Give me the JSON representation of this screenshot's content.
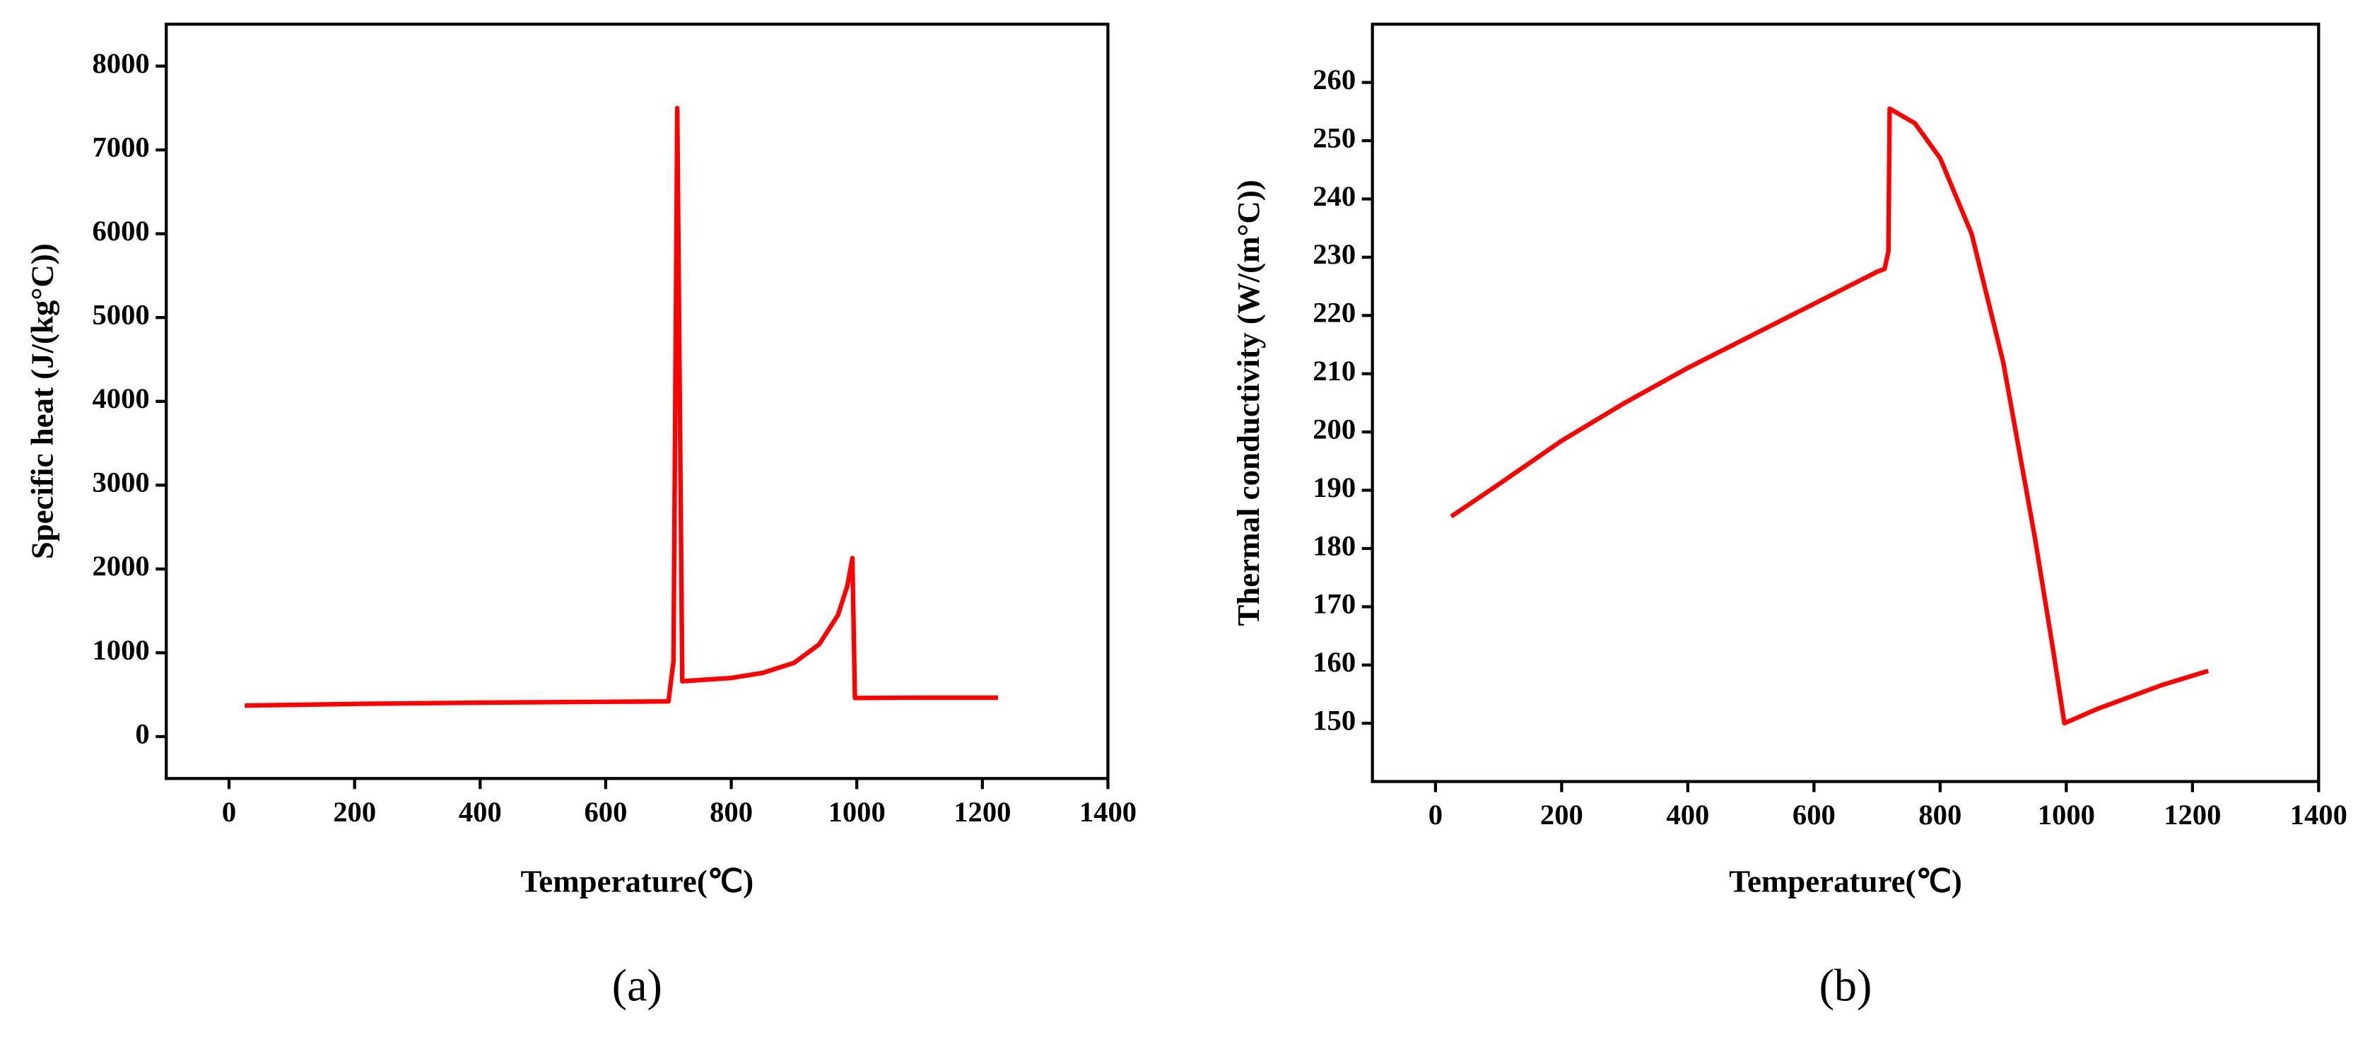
{
  "chart_data": [
    {
      "type": "line",
      "panel_label": "(a)",
      "xlabel": "Temperature(℃)",
      "ylabel": "Specific heat (J/(kg°C))",
      "x": [
        25,
        200,
        400,
        600,
        700,
        708,
        714,
        722,
        800,
        850,
        900,
        940,
        970,
        985,
        993,
        997,
        1100,
        1225
      ],
      "values": [
        370,
        390,
        405,
        415,
        420,
        900,
        7500,
        660,
        700,
        760,
        880,
        1100,
        1450,
        1800,
        2130,
        460,
        465,
        465
      ],
      "color": "#ff0000",
      "xlim": [
        -100,
        1400
      ],
      "xticks": [
        0,
        200,
        400,
        600,
        800,
        1000,
        1200,
        1400
      ],
      "ylim": [
        -500,
        8500
      ],
      "yticks": [
        0,
        1000,
        2000,
        3000,
        4000,
        5000,
        6000,
        7000,
        8000
      ]
    },
    {
      "type": "line",
      "panel_label": "(b)",
      "xlabel": "Temperature(℃)",
      "ylabel": "Thermal conductivity (W/(m°C))",
      "x": [
        25,
        100,
        200,
        300,
        400,
        500,
        600,
        700,
        712,
        718,
        720,
        760,
        800,
        850,
        900,
        950,
        980,
        997,
        1050,
        1100,
        1150,
        1225
      ],
      "values": [
        185.5,
        191,
        198.5,
        205,
        211,
        216.5,
        222,
        227.5,
        228,
        231,
        255.5,
        253,
        247,
        234,
        212,
        182,
        162,
        150,
        152.5,
        154.5,
        156.5,
        159
      ],
      "color": "#ff0000",
      "xlim": [
        -100,
        1400
      ],
      "xticks": [
        0,
        200,
        400,
        600,
        800,
        1000,
        1200,
        1400
      ],
      "ylim": [
        140,
        270
      ],
      "yticks": [
        150,
        160,
        170,
        180,
        190,
        200,
        210,
        220,
        230,
        240,
        250,
        260
      ]
    }
  ]
}
